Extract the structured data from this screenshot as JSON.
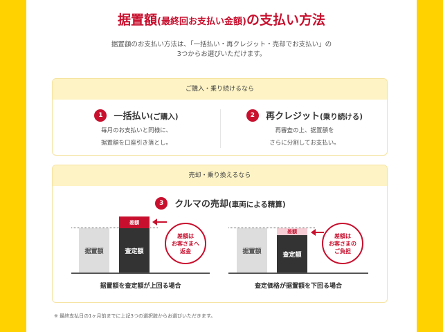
{
  "title": {
    "main1": "据置額",
    "paren": "(最終回お支払い金額)",
    "main2": "の支払い方法"
  },
  "lead": {
    "line1": "据置額のお支払い方法は、「一括払い・再クレジット・売却でお支払い」の",
    "line2": "3つからお選びいただけます。"
  },
  "section1": {
    "header": "ご購入・乗り続けるなら",
    "options": [
      {
        "number": "1",
        "title": "一括払い",
        "title_paren": "(ご購入)",
        "desc1": "毎月のお支払いと同様に、",
        "desc2": "据置額を口座引き落とし。"
      },
      {
        "number": "2",
        "title": "再クレジット",
        "title_paren": "(乗り続ける)",
        "desc1": "再審査の上、据置額を",
        "desc2": "さらに分割してお支払い。"
      }
    ]
  },
  "section2": {
    "header": "売却・乗り換えるなら",
    "number": "3",
    "title": "クルマの売却",
    "title_paren": "(車両による精算)",
    "diagrams": [
      {
        "deferred_label": "据置額",
        "appraisal_label": "査定額",
        "diff_label": "差額",
        "bubble1": "差額は",
        "bubble2": "お客さまへ",
        "bubble3": "返金",
        "caption": "据置額を査定額が上回る場合"
      },
      {
        "deferred_label": "据置額",
        "appraisal_label": "査定額",
        "diff_label": "差額",
        "bubble1": "差額は",
        "bubble2": "お客さまの",
        "bubble3": "ご負担",
        "caption": "査定価格が据置額を下回る場合"
      }
    ]
  },
  "note": "※ 最終支払日の1ヶ月前までに上記3つの選択肢からお選びいただきます。",
  "colors": {
    "accent": "#c8102e",
    "background": "#ffd200",
    "header_bg": "#fdf3c4"
  }
}
